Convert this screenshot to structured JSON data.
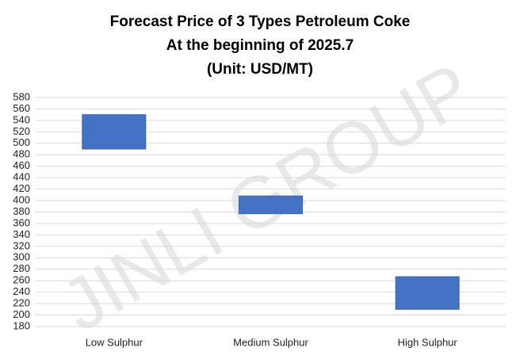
{
  "chart_data": {
    "type": "floating-bar",
    "title": [
      "Forecast Price of 3 Types Petroleum Coke",
      "At the beginning of 2025.7",
      "(Unit: USD/MT)"
    ],
    "watermark": "JINLI GROUP",
    "categories": [
      "Low Sulphur",
      "Medium Sulphur",
      "High Sulphur"
    ],
    "low": [
      490,
      377,
      210
    ],
    "high": [
      550,
      408,
      267
    ],
    "color": "#4472c4",
    "ylim": [
      180,
      580
    ],
    "yticks": [
      180,
      200,
      220,
      240,
      260,
      280,
      300,
      320,
      340,
      360,
      380,
      400,
      420,
      440,
      460,
      480,
      500,
      520,
      540,
      560,
      580
    ],
    "grid": true
  }
}
